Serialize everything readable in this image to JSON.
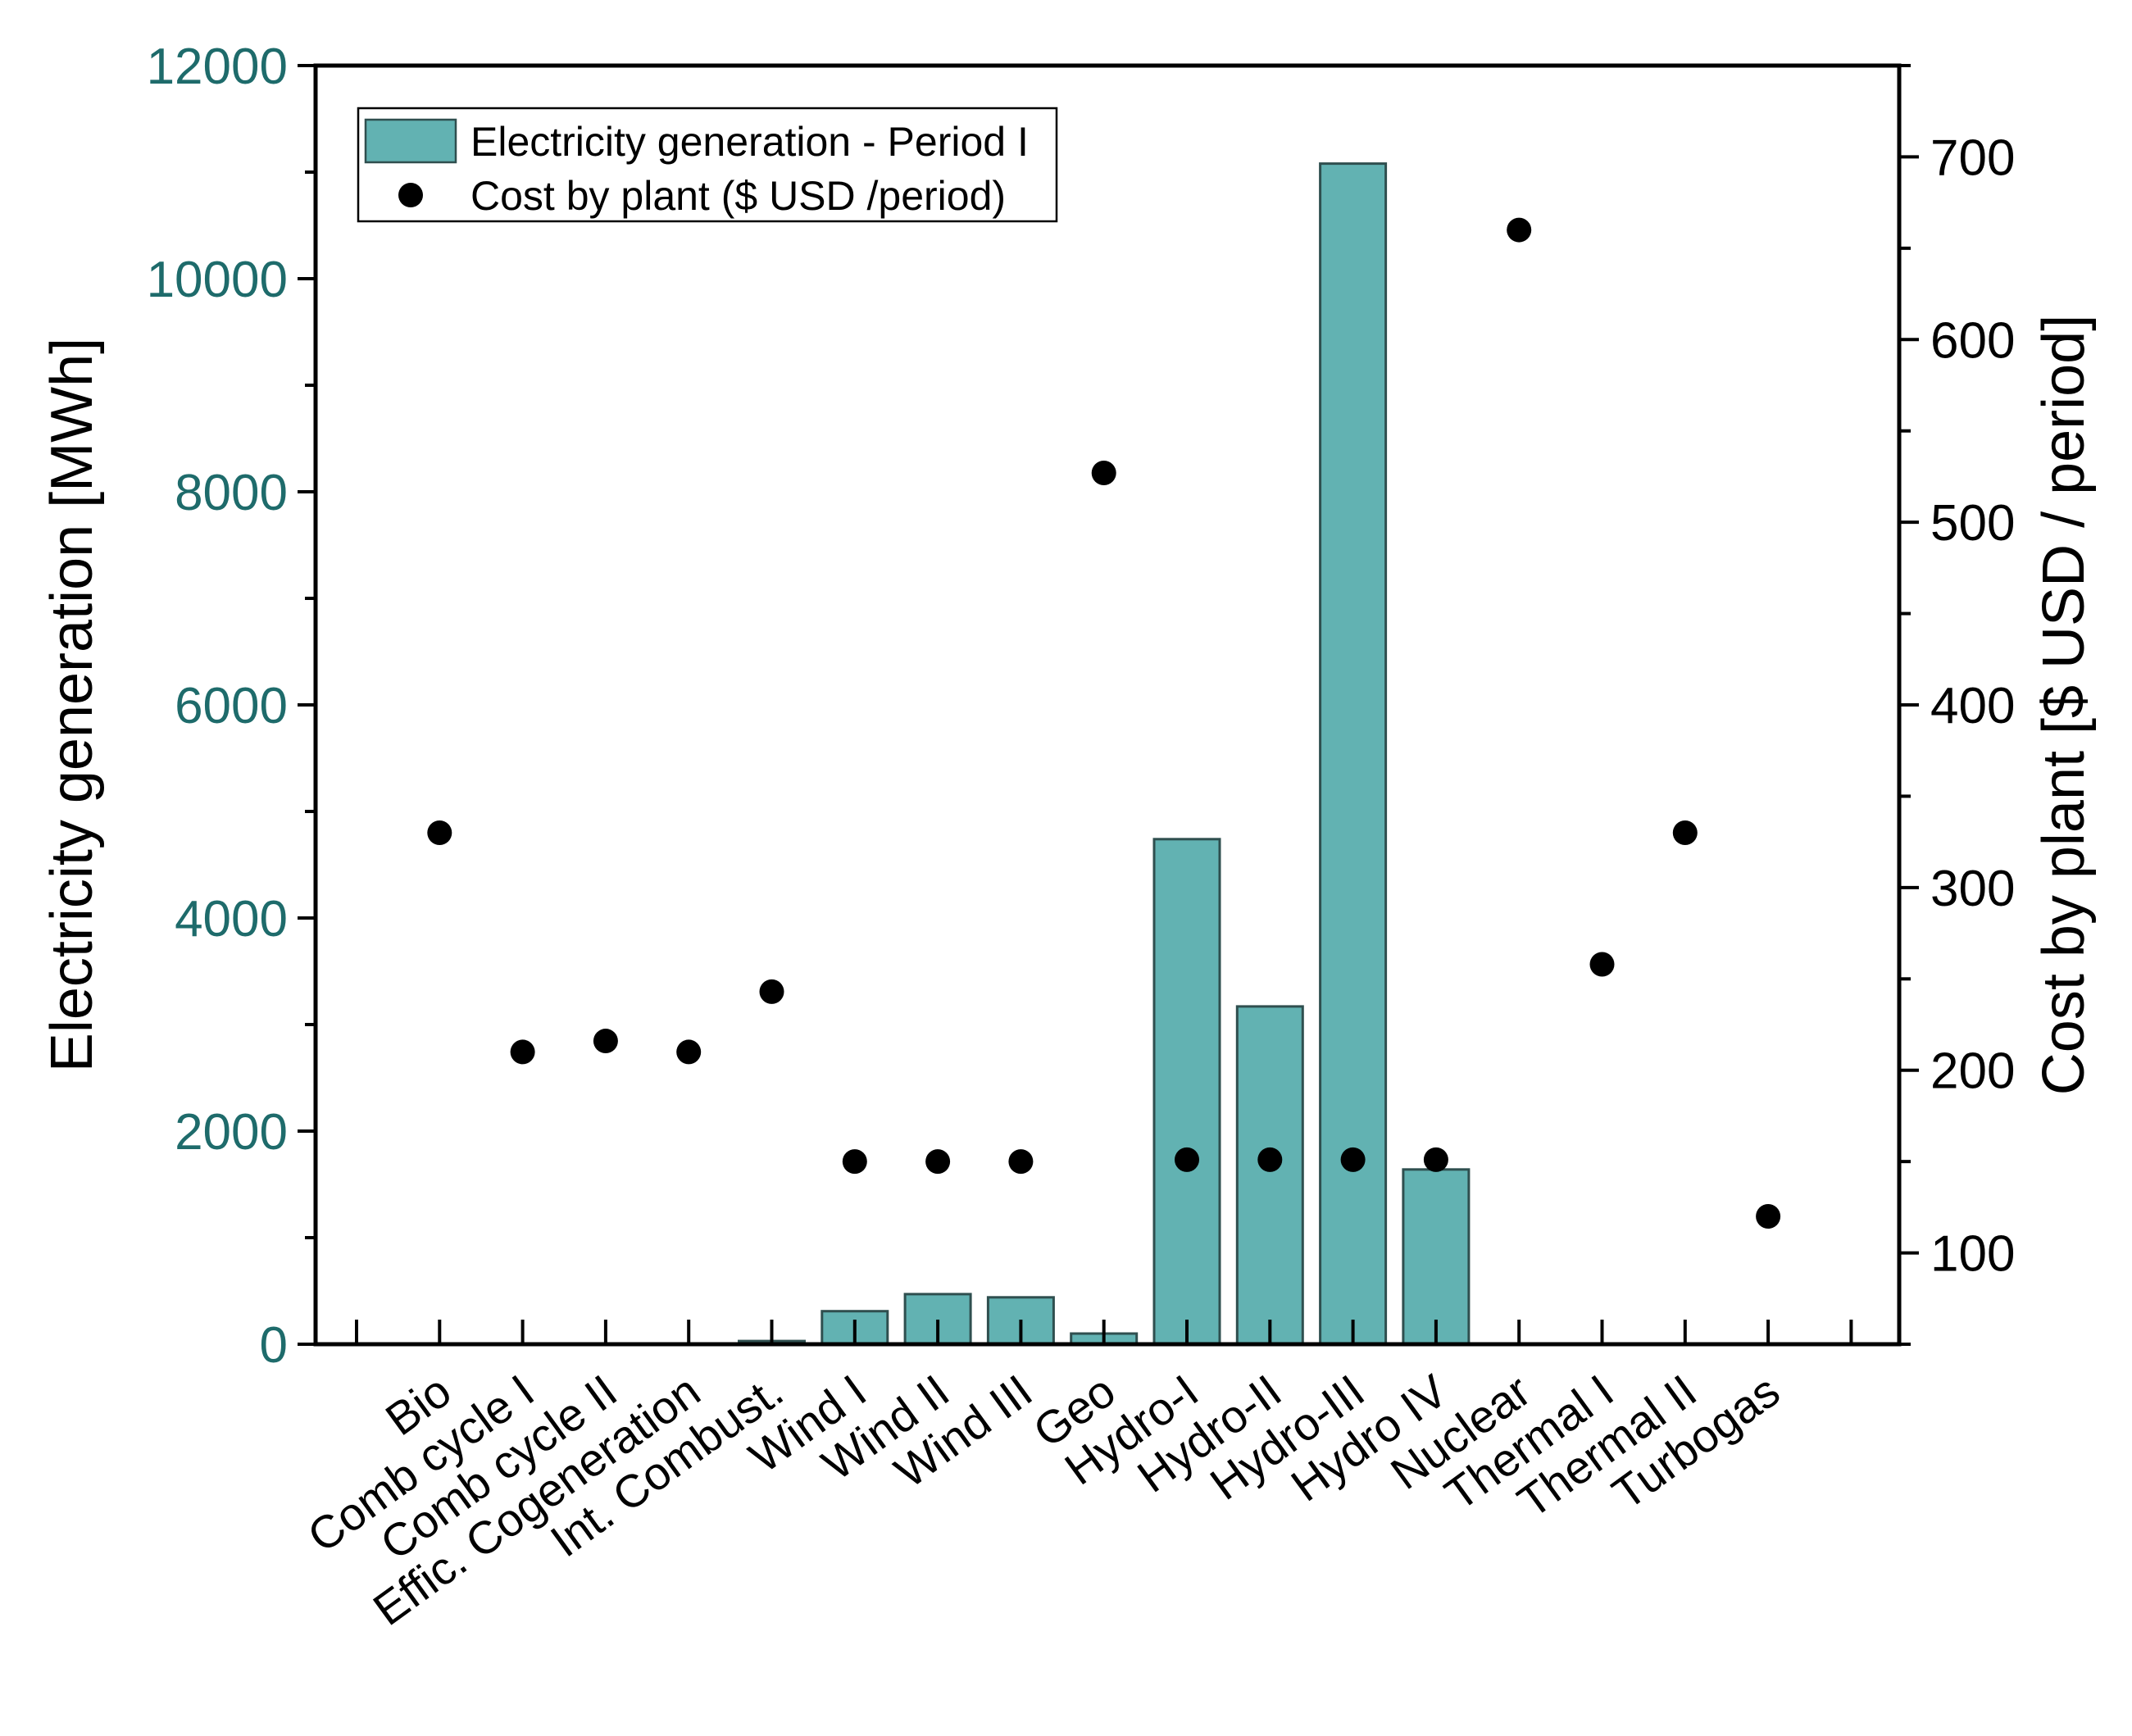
{
  "chart_data": {
    "type": "bar",
    "categories": [
      "Bio",
      "Comb cycle I",
      "Comb cycle II",
      "Effic. Cogeneration",
      "Int. Combust.",
      "Wind I",
      "Wind II",
      "Wind III",
      "Geo",
      "Hydro-I",
      "Hydro-II",
      "Hydro-III",
      "Hydro IV",
      "Nuclear",
      "Thermal I",
      "Thermal II",
      "Turbogas"
    ],
    "series": [
      {
        "name": "Electricity generation - Period I",
        "kind": "bar",
        "axis": "left",
        "values": [
          0,
          0,
          0,
          0,
          30,
          310,
          470,
          440,
          100,
          4740,
          3170,
          11080,
          1640,
          0,
          0,
          0,
          0
        ]
      },
      {
        "name": "Cost by plant ($ USD /period)",
        "kind": "scatter",
        "axis": "right",
        "values": [
          330,
          210,
          216,
          210,
          243,
          150,
          150,
          150,
          527,
          151,
          151,
          151,
          151,
          660,
          258,
          330,
          120
        ]
      }
    ],
    "ylabel": "Electricity generation [MWh]",
    "ylabel_right": "Cost by plant  [$ USD / period]",
    "ylim": [
      0,
      12000
    ],
    "ylim_right": [
      50,
      750
    ],
    "yticks": [
      "0",
      "2000",
      "4000",
      "6000",
      "8000",
      "10000",
      "12000"
    ],
    "yticks_right": [
      "100",
      "200",
      "300",
      "400",
      "500",
      "600",
      "700"
    ],
    "legend_position": "top-left",
    "colors": {
      "bar_fill": "#62b2b2",
      "bar_stroke": "#2f4f4f",
      "marker": "#000000",
      "left_axis_text": "#1e6b6b"
    }
  }
}
